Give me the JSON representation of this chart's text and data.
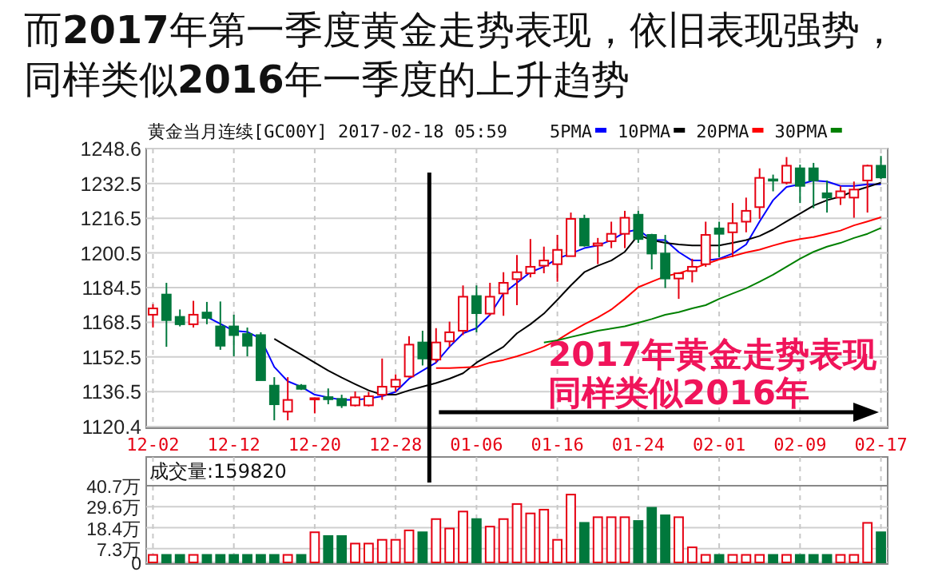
{
  "chart_data": [
    {
      "type": "candlestick",
      "title": "而2017年第一季度黄金走势表现，依旧表现强势，同样类似2016年一季度的上升趋势",
      "subtitle": "黄金当月连续[GC00Y] 2017-02-18 05:59",
      "categories": [
        "12-02",
        null,
        null,
        null,
        null,
        null,
        "12-12",
        null,
        null,
        null,
        null,
        null,
        "12-20",
        null,
        null,
        null,
        null,
        null,
        "12-28",
        null,
        null,
        null,
        null,
        null,
        "01-06",
        null,
        null,
        null,
        null,
        null,
        "01-16",
        null,
        null,
        null,
        null,
        null,
        "01-24",
        null,
        null,
        null,
        null,
        null,
        "02-01",
        null,
        null,
        null,
        null,
        null,
        "02-09",
        null,
        null,
        null,
        null,
        null,
        "02-17"
      ],
      "ohlc": [
        [
          1172.0,
          1176.9,
          1166.1,
          1174.9
        ],
        [
          1181.3,
          1186.7,
          1157.2,
          1169.5
        ],
        [
          1171.0,
          1174.4,
          1166.6,
          1167.6
        ],
        [
          1167.6,
          1178.4,
          1166.1,
          1172.0
        ],
        [
          1173.0,
          1177.9,
          1167.6,
          1170.5
        ],
        [
          1166.6,
          1178.1,
          1155.8,
          1157.7
        ],
        [
          1166.6,
          1172.0,
          1152.8,
          1162.6
        ],
        [
          1163.1,
          1166.1,
          1152.8,
          1157.7
        ],
        [
          1162.6,
          1163.9,
          1141.8,
          1141.8
        ],
        [
          1139.3,
          1143.2,
          1123.3,
          1130.7
        ],
        [
          1127.3,
          1143.2,
          1123.3,
          1132.7
        ],
        [
          1139.3,
          1140.0,
          1137.3,
          1137.8
        ],
        [
          1133.0,
          1133.8,
          1126.5,
          1133.5
        ],
        [
          1134.0,
          1138.0,
          1130.7,
          1133.0
        ],
        [
          1133.2,
          1135.1,
          1129.0,
          1130.2
        ],
        [
          1130.2,
          1136.6,
          1129.7,
          1133.9
        ],
        [
          1130.2,
          1136.4,
          1129.7,
          1134.4
        ],
        [
          1135.1,
          1151.8,
          1132.7,
          1138.8
        ],
        [
          1138.8,
          1144.5,
          1136.4,
          1142.0
        ],
        [
          1143.5,
          1162.1,
          1143.0,
          1158.2
        ],
        [
          1159.2,
          1164.6,
          1148.6,
          1151.8
        ],
        [
          1151.3,
          1165.8,
          1149.9,
          1159.2
        ],
        [
          1159.7,
          1168.8,
          1157.2,
          1163.9
        ],
        [
          1164.6,
          1185.5,
          1162.6,
          1180.3
        ],
        [
          1180.6,
          1185.5,
          1163.9,
          1172.7
        ],
        [
          1172.5,
          1186.7,
          1171.5,
          1180.3
        ],
        [
          1181.8,
          1191.6,
          1171.5,
          1186.7
        ],
        [
          1188.4,
          1199.5,
          1176.4,
          1191.6
        ],
        [
          1191.1,
          1206.9,
          1189.2,
          1194.1
        ],
        [
          1194.6,
          1203.4,
          1191.1,
          1197.0
        ],
        [
          1195.3,
          1208.8,
          1187.2,
          1201.9
        ],
        [
          1199.0,
          1219.1,
          1199.0,
          1216.2
        ],
        [
          1216.2,
          1218.1,
          1203.4,
          1203.9
        ],
        [
          1203.9,
          1207.4,
          1195.3,
          1204.9
        ],
        [
          1205.9,
          1214.9,
          1202.7,
          1209.3
        ],
        [
          1209.3,
          1219.9,
          1202.7,
          1216.7
        ],
        [
          1218.1,
          1219.9,
          1205.1,
          1206.9
        ],
        [
          1208.8,
          1209.3,
          1192.9,
          1200.2
        ],
        [
          1200.2,
          1208.8,
          1184.3,
          1188.7
        ],
        [
          1188.7,
          1191.6,
          1179.3,
          1191.1
        ],
        [
          1192.1,
          1197.8,
          1186.9,
          1194.1
        ],
        [
          1195.3,
          1214.9,
          1194.1,
          1208.8
        ],
        [
          1211.8,
          1214.9,
          1198.5,
          1209.3
        ],
        [
          1210.0,
          1223.5,
          1198.5,
          1214.2
        ],
        [
          1214.9,
          1226.0,
          1210.0,
          1219.9
        ],
        [
          1221.6,
          1239.5,
          1216.2,
          1235.1
        ],
        [
          1234.4,
          1236.6,
          1228.9,
          1234.1
        ],
        [
          1232.9,
          1244.7,
          1232.1,
          1240.7
        ],
        [
          1239.5,
          1241.2,
          1223.5,
          1231.4
        ],
        [
          1239.5,
          1242.0,
          1221.1,
          1233.9
        ],
        [
          1228.0,
          1233.9,
          1219.1,
          1226.0
        ],
        [
          1226.0,
          1231.4,
          1222.6,
          1228.9
        ],
        [
          1226.0,
          1233.4,
          1216.7,
          1229.7
        ],
        [
          1233.9,
          1241.2,
          1219.1,
          1240.7
        ],
        [
          1240.7,
          1245.2,
          1234.6,
          1235.3
        ]
      ],
      "colors": [
        "#e60012",
        "#00783c",
        "#00783c",
        "#e60012",
        "#00783c",
        "#00783c",
        "#00783c",
        "#00783c",
        "#00783c",
        "#00783c",
        "#e60012",
        "#00783c",
        "#e60012",
        "#00783c",
        "#00783c",
        "#e60012",
        "#e60012",
        "#e60012",
        "#e60012",
        "#e60012",
        "#00783c",
        "#e60012",
        "#e60012",
        "#e60012",
        "#00783c",
        "#e60012",
        "#e60012",
        "#e60012",
        "#e60012",
        "#e60012",
        "#e60012",
        "#e60012",
        "#00783c",
        "#e60012",
        "#e60012",
        "#e60012",
        "#00783c",
        "#00783c",
        "#00783c",
        "#e60012",
        "#e60012",
        "#e60012",
        "#00783c",
        "#e60012",
        "#e60012",
        "#e60012",
        "#00783c",
        "#e60012",
        "#00783c",
        "#00783c",
        "#00783c",
        "#e60012",
        "#e60012",
        "#e60012",
        "#00783c"
      ],
      "series": [
        {
          "name": "5PMA",
          "type": "line",
          "color": "#0000ff",
          "values": [
            null,
            null,
            null,
            null,
            1171.0,
            1167.8,
            1164.6,
            1164.1,
            1160.9,
            1147.9,
            1141.3,
            1138.8,
            1135.1,
            1133.9,
            1132.7,
            1132.7,
            1133.4,
            1134.4,
            1136.4,
            1142.5,
            1146.2,
            1149.9,
            1157.2,
            1163.4,
            1165.8,
            1172.0,
            1181.8,
            1186.7,
            1191.6,
            1194.1,
            1197.8,
            1200.2,
            1202.7,
            1203.9,
            1206.4,
            1210.0,
            1211.3,
            1206.4,
            1206.4,
            1200.9,
            1197.0,
            1197.0,
            1197.8,
            1200.2,
            1204.4,
            1215.0,
            1224.8,
            1230.9,
            1232.1,
            1233.9,
            1233.4,
            1231.4,
            1231.4,
            1232.1,
            1232.1
          ]
        },
        {
          "name": "10PMA",
          "type": "line",
          "color": "#000000",
          "values": [
            null,
            null,
            null,
            null,
            null,
            null,
            null,
            null,
            null,
            1160.9,
            1157.2,
            1153.6,
            1149.9,
            1146.2,
            1143.0,
            1140.0,
            1137.1,
            1135.1,
            1135.1,
            1137.1,
            1138.8,
            1140.5,
            1142.5,
            1145.0,
            1149.9,
            1153.6,
            1157.2,
            1163.4,
            1167.6,
            1172.5,
            1178.9,
            1185.5,
            1191.6,
            1194.6,
            1197.0,
            1201.0,
            1208.8,
            1206.4,
            1205.1,
            1204.4,
            1203.9,
            1203.9,
            1203.9,
            1205.1,
            1206.4,
            1208.3,
            1211.3,
            1215.0,
            1218.6,
            1222.3,
            1224.8,
            1226.5,
            1229.0,
            1230.9,
            1232.9
          ]
        },
        {
          "name": "20PMA",
          "type": "line",
          "color": "#ff0000",
          "values": [
            null,
            null,
            null,
            null,
            null,
            null,
            null,
            null,
            null,
            null,
            null,
            null,
            null,
            null,
            null,
            null,
            null,
            null,
            null,
            null,
            null,
            1147.4,
            1147.4,
            1147.7,
            1147.9,
            1149.9,
            1151.1,
            1152.8,
            1154.8,
            1157.2,
            1160.2,
            1164.1,
            1167.6,
            1170.7,
            1174.4,
            1179.3,
            1184.7,
            1187.2,
            1189.7,
            1191.1,
            1193.1,
            1195.3,
            1197.5,
            1199.0,
            1200.7,
            1202.0,
            1203.9,
            1205.6,
            1206.9,
            1207.8,
            1209.3,
            1210.8,
            1213.2,
            1215.0,
            1216.9
          ]
        },
        {
          "name": "30PMA",
          "type": "line",
          "color": "#008000",
          "values": [
            null,
            null,
            null,
            null,
            null,
            null,
            null,
            null,
            null,
            null,
            null,
            null,
            null,
            null,
            null,
            null,
            null,
            null,
            null,
            null,
            null,
            null,
            null,
            null,
            null,
            null,
            null,
            null,
            null,
            1159.2,
            1160.2,
            1161.7,
            1163.1,
            1164.6,
            1165.6,
            1166.6,
            1168.3,
            1170.0,
            1172.0,
            1173.2,
            1174.9,
            1176.4,
            1179.3,
            1181.8,
            1184.2,
            1187.2,
            1190.4,
            1194.1,
            1197.8,
            1201.0,
            1203.4,
            1205.1,
            1207.4,
            1209.3,
            1212.0
          ]
        }
      ],
      "ylim": [
        1120.4,
        1248.6
      ],
      "yticks": [
        1248.6,
        1232.5,
        1216.5,
        1200.5,
        1184.5,
        1168.5,
        1152.5,
        1136.5,
        1120.4
      ],
      "grid": true,
      "legend": "top right",
      "annotations": [
        "2017年黄金走势表现",
        "同样类似2016年"
      ]
    },
    {
      "type": "bar",
      "categories": [
        null,
        null,
        null,
        null,
        null,
        null,
        null,
        null,
        null,
        null,
        null,
        null,
        null,
        null,
        null,
        null,
        null,
        null,
        null,
        null,
        null,
        null,
        null,
        null,
        null,
        null,
        null,
        null,
        null,
        null,
        null,
        null,
        null,
        null,
        null,
        null,
        null,
        null,
        null,
        null,
        null,
        null,
        null,
        null,
        null,
        null,
        null,
        null,
        null,
        null,
        null,
        null,
        null,
        null,
        null
      ],
      "values": [
        4,
        4,
        4,
        4,
        4,
        4,
        4,
        4,
        4,
        4,
        4,
        4,
        16,
        14,
        14,
        10,
        10,
        12,
        12,
        17,
        16,
        23,
        18,
        27,
        23,
        19,
        23,
        31,
        26,
        28,
        12,
        36,
        21,
        24,
        24,
        24,
        22,
        29,
        25,
        24,
        8,
        4,
        4,
        4,
        4,
        4,
        4,
        4,
        4,
        4,
        4,
        4,
        4,
        21,
        16
      ],
      "colors": [
        "#e60012",
        "#00783c",
        "#00783c",
        "#e60012",
        "#00783c",
        "#00783c",
        "#00783c",
        "#00783c",
        "#00783c",
        "#00783c",
        "#e60012",
        "#00783c",
        "#e60012",
        "#00783c",
        "#00783c",
        "#e60012",
        "#e60012",
        "#e60012",
        "#e60012",
        "#e60012",
        "#00783c",
        "#e60012",
        "#e60012",
        "#e60012",
        "#00783c",
        "#e60012",
        "#e60012",
        "#e60012",
        "#e60012",
        "#e60012",
        "#e60012",
        "#e60012",
        "#00783c",
        "#e60012",
        "#e60012",
        "#e60012",
        "#00783c",
        "#00783c",
        "#00783c",
        "#e60012",
        "#e60012",
        "#e60012",
        "#00783c",
        "#e60012",
        "#e60012",
        "#e60012",
        "#00783c",
        "#e60012",
        "#00783c",
        "#00783c",
        "#00783c",
        "#e60012",
        "#e60012",
        "#e60012",
        "#00783c"
      ],
      "ylim": [
        0,
        40.7
      ],
      "yticks": [
        0,
        {
          "value": 7.3,
          "label": "7.3万"
        },
        {
          "value": 18.4,
          "label": "18.4万"
        },
        {
          "value": 29.6,
          "label": "29.6万"
        },
        {
          "value": 40.7,
          "label": "40.7万"
        }
      ],
      "grid": true,
      "tick_labels": "y",
      "annotations": [
        "成交量:159820"
      ]
    }
  ]
}
